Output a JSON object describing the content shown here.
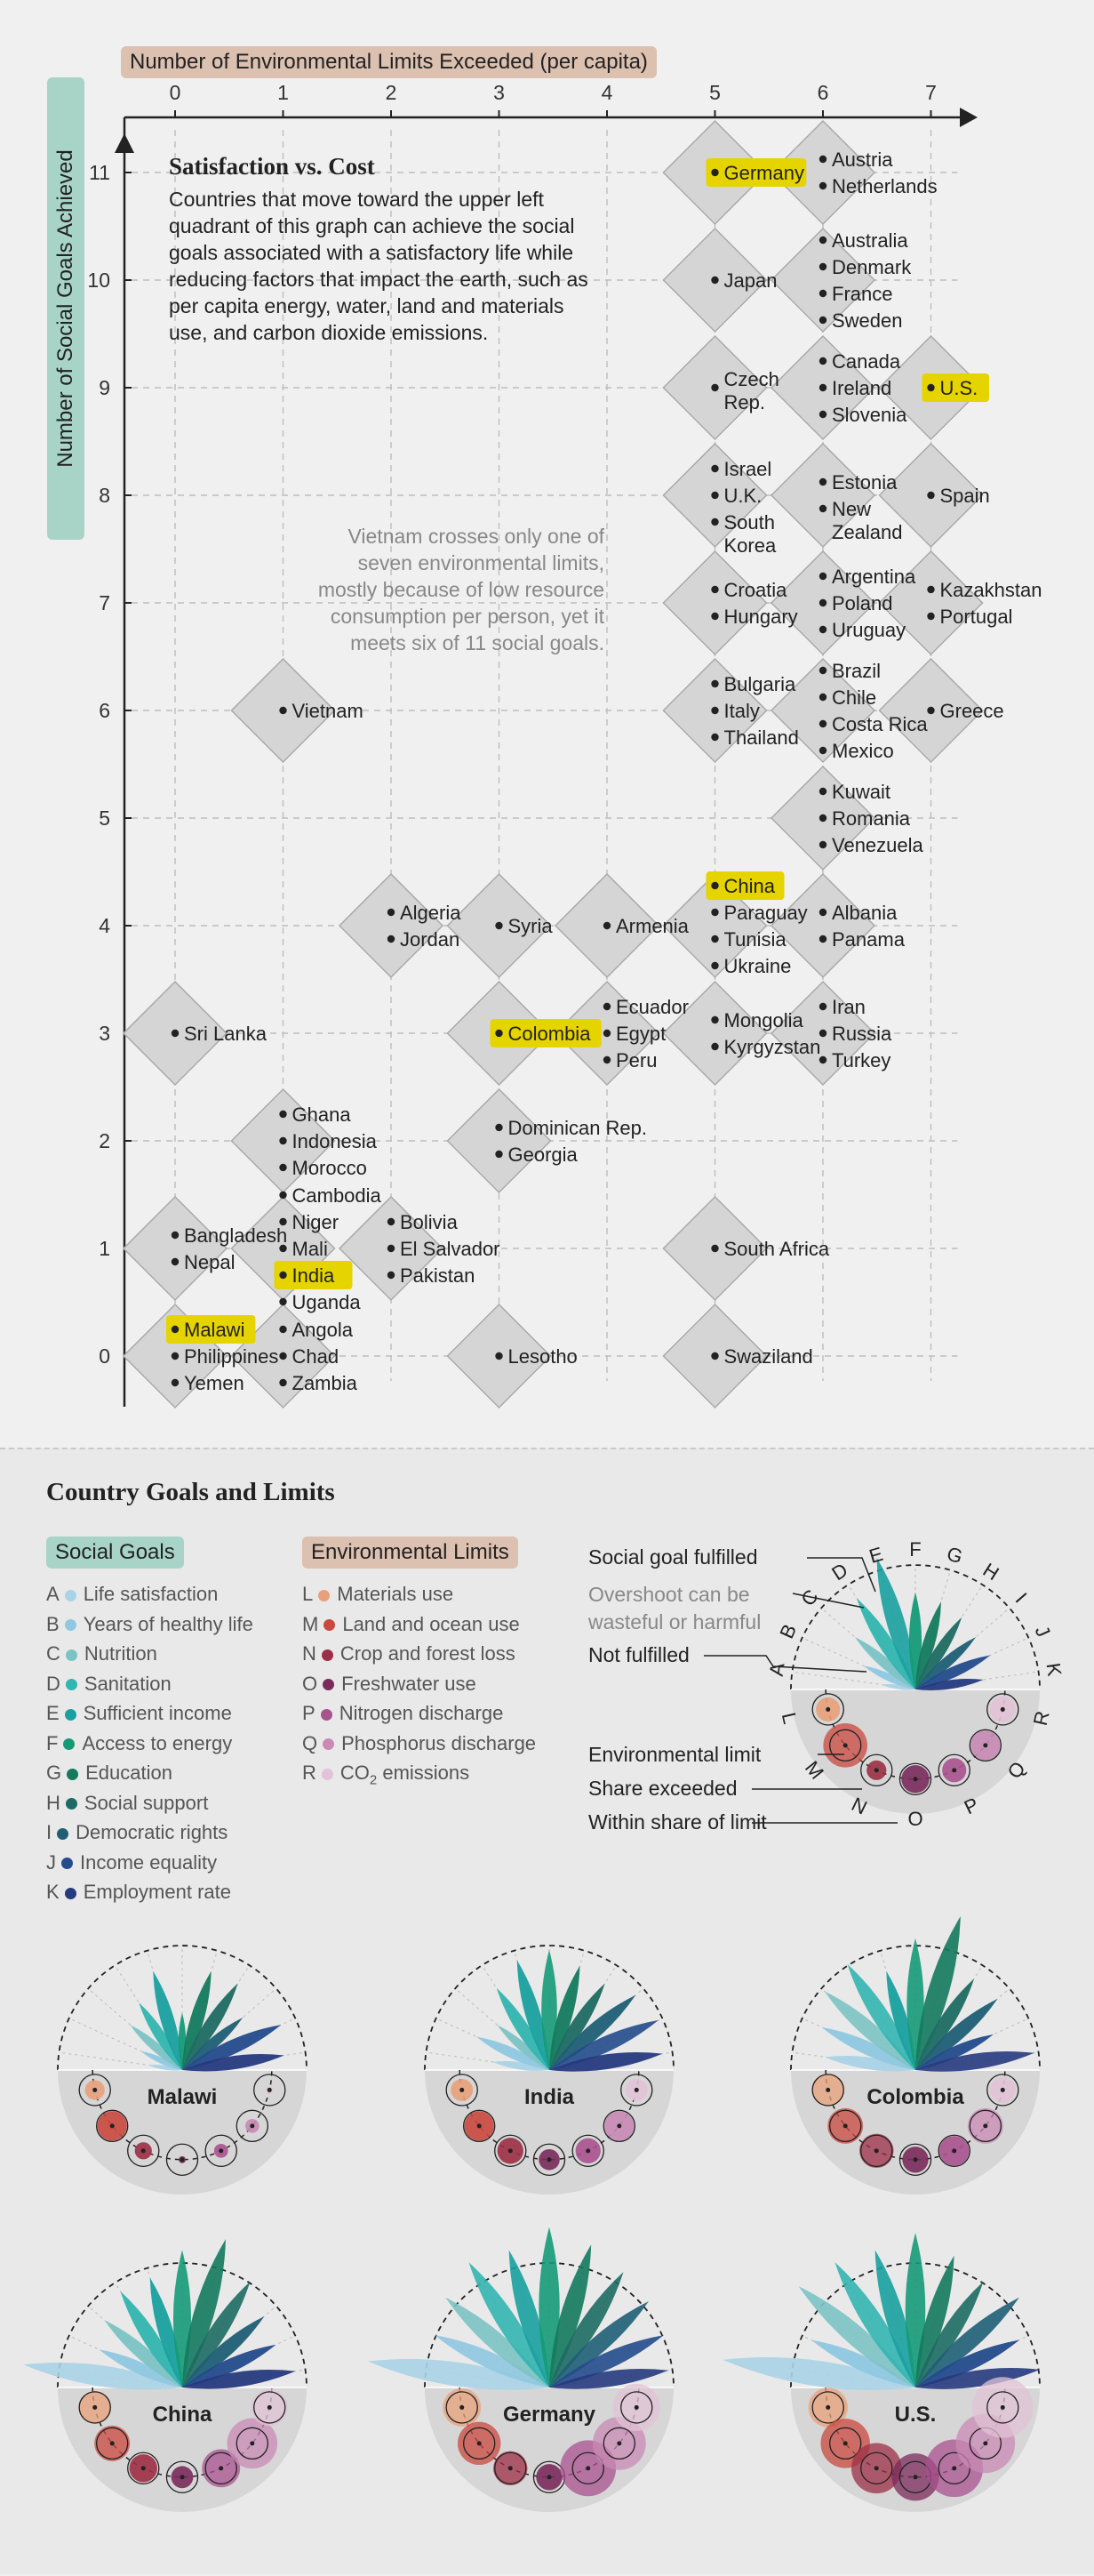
{
  "header": {
    "x_axis_title": "Number of Environmental Limits Exceeded (per capita)",
    "y_axis_title": "Number of Social Goals Achieved",
    "callout_title": "Satisfaction vs. Cost",
    "callout_body": [
      "Countries that move toward the upper left",
      "quadrant of this graph can achieve the social",
      "goals associated with a satisfactory life while",
      "reducing factors that impact the earth, such as",
      "per capita energy, water, land and materials",
      "use, and carbon dioxide emissions."
    ],
    "vietnam_note": [
      "Vietnam crosses only one of",
      "seven environmental limits,",
      "mostly because of low resource",
      "consumption per person, yet it",
      "meets six of 11 social goals."
    ]
  },
  "chart_data": {
    "type": "scatter",
    "title": "Satisfaction vs. Cost",
    "xlabel": "Number of Environmental Limits Exceeded (per capita)",
    "ylabel": "Number of Social Goals Achieved",
    "xlim": [
      0,
      7
    ],
    "ylim": [
      0,
      11
    ],
    "x_ticks": [
      0,
      1,
      2,
      3,
      4,
      5,
      6,
      7
    ],
    "y_ticks": [
      0,
      1,
      2,
      3,
      4,
      5,
      6,
      7,
      8,
      9,
      10,
      11
    ],
    "highlight_color": "#e6d400",
    "cells": [
      {
        "x": 5,
        "y": 11,
        "countries": [
          "Germany"
        ],
        "highlight": [
          "Germany"
        ]
      },
      {
        "x": 6,
        "y": 11,
        "countries": [
          "Austria",
          "Netherlands"
        ]
      },
      {
        "x": 5,
        "y": 10,
        "countries": [
          "Japan"
        ]
      },
      {
        "x": 6,
        "y": 10,
        "countries": [
          "Australia",
          "Denmark",
          "France",
          "Sweden"
        ]
      },
      {
        "x": 5,
        "y": 9,
        "countries": [
          "Czech Rep."
        ]
      },
      {
        "x": 6,
        "y": 9,
        "countries": [
          "Canada",
          "Ireland",
          "Slovenia"
        ]
      },
      {
        "x": 7,
        "y": 9,
        "countries": [
          "U.S."
        ],
        "highlight": [
          "U.S."
        ]
      },
      {
        "x": 5,
        "y": 8,
        "countries": [
          "Israel",
          "U.K.",
          "South Korea"
        ]
      },
      {
        "x": 6,
        "y": 8,
        "countries": [
          "Estonia",
          "New Zealand"
        ]
      },
      {
        "x": 7,
        "y": 8,
        "countries": [
          "Spain"
        ]
      },
      {
        "x": 5,
        "y": 7,
        "countries": [
          "Croatia",
          "Hungary"
        ]
      },
      {
        "x": 6,
        "y": 7,
        "countries": [
          "Argentina",
          "Poland",
          "Uruguay"
        ]
      },
      {
        "x": 7,
        "y": 7,
        "countries": [
          "Kazakhstan",
          "Portugal"
        ]
      },
      {
        "x": 1,
        "y": 6,
        "countries": [
          "Vietnam"
        ]
      },
      {
        "x": 5,
        "y": 6,
        "countries": [
          "Bulgaria",
          "Italy",
          "Thailand"
        ]
      },
      {
        "x": 6,
        "y": 6,
        "countries": [
          "Brazil",
          "Chile",
          "Costa Rica",
          "Mexico"
        ]
      },
      {
        "x": 7,
        "y": 6,
        "countries": [
          "Greece"
        ]
      },
      {
        "x": 6,
        "y": 5,
        "countries": [
          "Kuwait",
          "Romania",
          "Venezuela"
        ]
      },
      {
        "x": 2,
        "y": 4,
        "countries": [
          "Algeria",
          "Jordan"
        ]
      },
      {
        "x": 3,
        "y": 4,
        "countries": [
          "Syria"
        ]
      },
      {
        "x": 4,
        "y": 4,
        "countries": [
          "Armenia"
        ]
      },
      {
        "x": 5,
        "y": 4,
        "countries": [
          "China",
          "Paraguay",
          "Tunisia",
          "Ukraine"
        ],
        "highlight": [
          "China"
        ]
      },
      {
        "x": 6,
        "y": 4,
        "countries": [
          "Albania",
          "Panama"
        ]
      },
      {
        "x": 0,
        "y": 3,
        "countries": [
          "Sri Lanka"
        ]
      },
      {
        "x": 3,
        "y": 3,
        "countries": [
          "Colombia"
        ],
        "highlight": [
          "Colombia"
        ]
      },
      {
        "x": 4,
        "y": 3,
        "countries": [
          "Ecuador",
          "Egypt",
          "Peru"
        ]
      },
      {
        "x": 5,
        "y": 3,
        "countries": [
          "Mongolia",
          "Kyrgyzstan"
        ]
      },
      {
        "x": 6,
        "y": 3,
        "countries": [
          "Iran",
          "Russia",
          "Turkey"
        ]
      },
      {
        "x": 1,
        "y": 2,
        "countries": [
          "Ghana",
          "Indonesia",
          "Morocco"
        ]
      },
      {
        "x": 3,
        "y": 2,
        "countries": [
          "Dominican Rep.",
          "Georgia"
        ]
      },
      {
        "x": 0,
        "y": 1,
        "countries": [
          "Bangladesh",
          "Nepal"
        ]
      },
      {
        "x": 1,
        "y": 1,
        "countries": [
          "Cambodia",
          "Niger",
          "Mali",
          "India",
          "Uganda"
        ],
        "highlight": [
          "India"
        ]
      },
      {
        "x": 2,
        "y": 1,
        "countries": [
          "Bolivia",
          "El Salvador",
          "Pakistan"
        ]
      },
      {
        "x": 5,
        "y": 1,
        "countries": [
          "South Africa"
        ]
      },
      {
        "x": 0,
        "y": 0,
        "countries": [
          "Malawi",
          "Philippines",
          "Yemen"
        ],
        "highlight": [
          "Malawi"
        ]
      },
      {
        "x": 1,
        "y": 0,
        "countries": [
          "Angola",
          "Chad",
          "Zambia"
        ]
      },
      {
        "x": 3,
        "y": 0,
        "countries": [
          "Lesotho"
        ]
      },
      {
        "x": 5,
        "y": 0,
        "countries": [
          "Swaziland"
        ]
      }
    ]
  },
  "legend": {
    "section_title": "Country Goals and Limits",
    "social_title": "Social Goals",
    "env_title": "Environmental Limits",
    "social": [
      {
        "key": "A",
        "label": "Life satisfaction",
        "color": "#a9d3e6"
      },
      {
        "key": "B",
        "label": "Years of healthy life",
        "color": "#8fc8e0"
      },
      {
        "key": "C",
        "label": "Nutrition",
        "color": "#7cc3c4"
      },
      {
        "key": "D",
        "label": "Sanitation",
        "color": "#33b5b0"
      },
      {
        "key": "E",
        "label": "Sufficient income",
        "color": "#1aa0a0"
      },
      {
        "key": "F",
        "label": "Access to energy",
        "color": "#159a78"
      },
      {
        "key": "G",
        "label": "Education",
        "color": "#137a5e"
      },
      {
        "key": "H",
        "label": "Social support",
        "color": "#1d6c63"
      },
      {
        "key": "I",
        "label": "Democratic rights",
        "color": "#1f5f76"
      },
      {
        "key": "J",
        "label": "Income equality",
        "color": "#244b8c"
      },
      {
        "key": "K",
        "label": "Employment rate",
        "color": "#263a7e"
      }
    ],
    "env": [
      {
        "key": "L",
        "label": "Materials use",
        "color": "#e8a07a"
      },
      {
        "key": "M",
        "label": "Land and ocean use",
        "color": "#c9483f"
      },
      {
        "key": "N",
        "label": "Crop and forest loss",
        "color": "#9c2f45"
      },
      {
        "key": "O",
        "label": "Freshwater use",
        "color": "#7a2b5b"
      },
      {
        "key": "P",
        "label": "Nitrogen discharge",
        "color": "#a8528f"
      },
      {
        "key": "Q",
        "label": "Phosphorus discharge",
        "color": "#c98ab5"
      },
      {
        "key": "R",
        "label": "CO2 emissions",
        "color": "#e2c3d6"
      }
    ],
    "annotations": {
      "fulfilled": "Social goal fulfilled",
      "overshoot": "Overshoot can be wasteful or harmful",
      "not_fulfilled": "Not fulfilled",
      "env_limit": "Environmental limit",
      "share_exceeded": "Share exceeded",
      "within_share": "Within share of limit"
    }
  },
  "countries_panel": [
    {
      "name": "Malawi",
      "social": [
        0.3,
        0.4,
        0.6,
        0.7,
        0.9,
        0.5,
        0.9,
        0.9,
        0.7,
        0.95,
        0.9
      ],
      "env": [
        0.4,
        0.9,
        0.3,
        0.05,
        0.2,
        0.2,
        0.05
      ]
    },
    {
      "name": "India",
      "social": [
        0.5,
        0.7,
        0.6,
        0.85,
        1.0,
        1.05,
        0.95,
        0.9,
        1.0,
        1.05,
        1.0
      ],
      "env": [
        0.5,
        0.9,
        0.7,
        0.45,
        0.65,
        0.9,
        0.5
      ]
    },
    {
      "name": "Colombia",
      "social": [
        0.8,
        0.9,
        1.05,
        1.1,
        0.9,
        1.15,
        1.4,
        0.95,
        0.95,
        0.75,
        1.05
      ],
      "env": [
        1.1,
        1.3,
        1.2,
        0.7,
        0.9,
        1.3,
        0.7
      ]
    },
    {
      "name": "China",
      "social": [
        1.4,
        0.8,
        0.9,
        1.0,
        1.0,
        1.2,
        1.35,
        1.1,
        0.95,
        0.9,
        1.0
      ],
      "env": [
        1.1,
        1.3,
        0.8,
        0.5,
        1.5,
        2.6,
        1.4
      ]
    },
    {
      "name": "Germany",
      "social": [
        1.6,
        1.1,
        1.2,
        1.3,
        1.25,
        1.4,
        1.3,
        1.2,
        1.15,
        1.1,
        1.05
      ],
      "env": [
        1.5,
        1.9,
        1.2,
        0.7,
        3.2,
        2.9,
        2.3
      ]
    },
    {
      "name": "U.S.",
      "social": [
        1.7,
        1.0,
        1.35,
        1.3,
        1.25,
        1.35,
        1.2,
        1.1,
        1.2,
        1.0,
        1.1
      ],
      "env": [
        1.6,
        2.5,
        2.6,
        2.3,
        3.4,
        3.6,
        3.8
      ]
    }
  ]
}
